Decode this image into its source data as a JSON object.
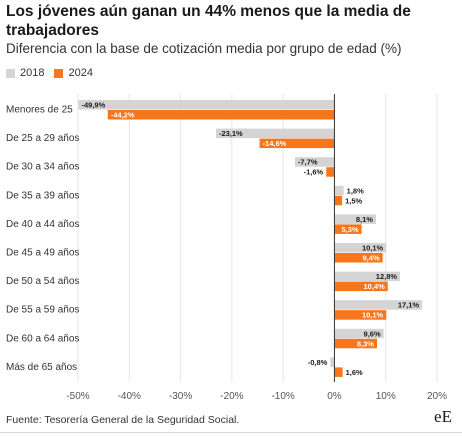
{
  "header": {
    "title": "Los jóvenes aún ganan un 44% menos que la media de trabajadores",
    "subtitle": "Diferencia con la base de cotización media por grupo de edad (%)"
  },
  "footer": {
    "source": "Fuente: Tesorería General de la Seguridad Social.",
    "logo": "eE"
  },
  "colors": {
    "series_2018": "#d4d4d4",
    "series_2024": "#f7761b",
    "gridline": "#e6e6e6",
    "zero_line": "#333333"
  },
  "chart_data": {
    "type": "bar",
    "orientation": "horizontal",
    "categories": [
      "Menores de 25",
      "De 25 a 29 años",
      "De 30 a 34 años",
      "De 35 a 39 años",
      "De 40 a 44 años",
      "De 45 a 49 años",
      "De 50 a 54 años",
      "De 55 a 59 años",
      "De 60 a 64 años",
      "Más de 65 años"
    ],
    "series": [
      {
        "name": "2018",
        "color": "#d4d4d4",
        "values": [
          -49.9,
          -23.1,
          -7.7,
          1.8,
          8.1,
          10.1,
          12.8,
          17.1,
          9.6,
          -0.8
        ],
        "labels": [
          "-49,9%",
          "-23,1%",
          "-7,7%",
          "1,8%",
          "8,1%",
          "10,1%",
          "12,8%",
          "17,1%",
          "9,6%",
          "-0,8%"
        ]
      },
      {
        "name": "2024",
        "color": "#f7761b",
        "values": [
          -44.2,
          -14.6,
          -1.6,
          1.5,
          5.3,
          9.4,
          10.4,
          10.1,
          8.3,
          1.6
        ],
        "labels": [
          "-44,2%",
          "-14,6%",
          "-1,6%",
          "1,5%",
          "5,3%",
          "9,4%",
          "10,4%",
          "10,1%",
          "8,3%",
          "1,6%"
        ]
      }
    ],
    "xlim": [
      -50,
      20
    ],
    "ticks": [
      -50,
      -40,
      -30,
      -20,
      -10,
      0,
      10,
      20
    ],
    "tick_labels": [
      "-50%",
      "-40%",
      "-30%",
      "-20%",
      "-10%",
      "0%",
      "10%",
      "20%"
    ],
    "grid": true,
    "legend": "top-left"
  }
}
